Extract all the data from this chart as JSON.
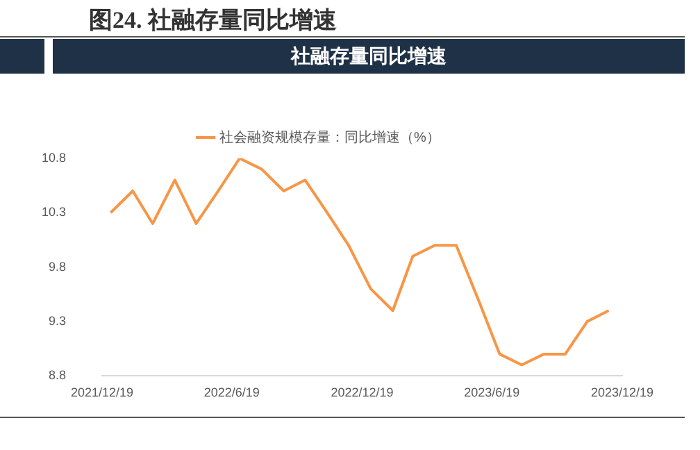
{
  "chart_data": {
    "type": "line",
    "title": "图24. 社融存量同比增速",
    "subtitle": "社融存量同比增速",
    "x": [
      "2021-12-31",
      "2022-01-31",
      "2022-02-28",
      "2022-03-31",
      "2022-04-30",
      "2022-05-31",
      "2022-06-30",
      "2022-07-31",
      "2022-08-31",
      "2022-09-30",
      "2022-10-31",
      "2022-11-30",
      "2022-12-31",
      "2023-01-31",
      "2023-02-28",
      "2023-03-31",
      "2023-04-30",
      "2023-05-31",
      "2023-06-30",
      "2023-07-31",
      "2023-08-31",
      "2023-09-30",
      "2023-10-31",
      "2023-11-30"
    ],
    "series": [
      {
        "name": "社会融资规模存量：同比增速（%）",
        "color": "#f79646",
        "values": [
          10.3,
          10.5,
          10.2,
          10.6,
          10.2,
          10.5,
          10.8,
          10.7,
          10.5,
          10.6,
          10.3,
          10.0,
          9.6,
          9.4,
          9.9,
          10.0,
          10.0,
          9.5,
          9.0,
          8.9,
          9.0,
          9.0,
          9.3,
          9.4
        ]
      }
    ],
    "xlim": [
      "2021-12-19",
      "2023-12-19"
    ],
    "xticks": [
      {
        "value": "2021-12-19",
        "label": "2021/12/19"
      },
      {
        "value": "2022-06-19",
        "label": "2022/6/19"
      },
      {
        "value": "2022-12-19",
        "label": "2022/12/19"
      },
      {
        "value": "2023-06-19",
        "label": "2023/6/19"
      },
      {
        "value": "2023-12-19",
        "label": "2023/12/19"
      }
    ],
    "ylim": [
      8.8,
      10.8
    ],
    "yticks": [
      8.8,
      9.3,
      9.8,
      10.3,
      10.8
    ],
    "grid": false,
    "legend": "top",
    "line_style": "solid"
  }
}
